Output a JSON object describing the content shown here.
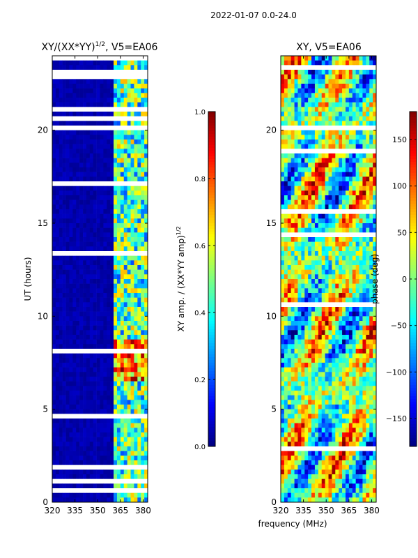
{
  "figure_title": "2022-01-07 0.0-24.0",
  "colormap": [
    "#00007f",
    "#0000ff",
    "#007fff",
    "#00ffff",
    "#7fff7f",
    "#ffff00",
    "#ff7f00",
    "#ff0000",
    "#7f0000"
  ],
  "chart_data": [
    {
      "type": "heatmap",
      "title_main": "XY/(XX*YY)",
      "title_sup": "1/2",
      "title_rest": ", V5=EA06",
      "xlabel": "",
      "ylabel": "UT (hours)",
      "xlim": [
        320,
        383
      ],
      "ylim": [
        0,
        24
      ],
      "x_ticks": [
        320,
        335,
        350,
        365,
        380
      ],
      "y_ticks": [
        0,
        5,
        10,
        15,
        20
      ],
      "variable": "normalized XY amplitude",
      "colorbar": {
        "label_main": "XY amp. / (XX*YY amp)",
        "label_sup": "1/2",
        "vmin": 0.0,
        "vmax": 1.0,
        "ticks": [
          "0.0",
          "0.2",
          "0.4",
          "0.6",
          "0.8",
          "1.0"
        ],
        "tick_values": [
          0.0,
          0.2,
          0.4,
          0.6,
          0.8,
          1.0
        ]
      }
    },
    {
      "type": "heatmap",
      "title_main": "XY, V5=EA06",
      "title_sup": "",
      "title_rest": "",
      "xlabel": "frequency (MHz)",
      "ylabel": "",
      "xlim": [
        320,
        383
      ],
      "ylim": [
        0,
        24
      ],
      "x_ticks": [
        320,
        335,
        350,
        365,
        380
      ],
      "y_ticks": [
        0,
        5,
        10,
        15,
        20
      ],
      "variable": "XY phase",
      "colorbar": {
        "label_main": "phase (deg)",
        "label_sup": "",
        "vmin": -180,
        "vmax": 180,
        "ticks": [
          "−150",
          "−100",
          "−50",
          "0",
          "50",
          "100",
          "150"
        ],
        "tick_values": [
          -150,
          -100,
          -50,
          0,
          50,
          100,
          150
        ]
      }
    }
  ]
}
